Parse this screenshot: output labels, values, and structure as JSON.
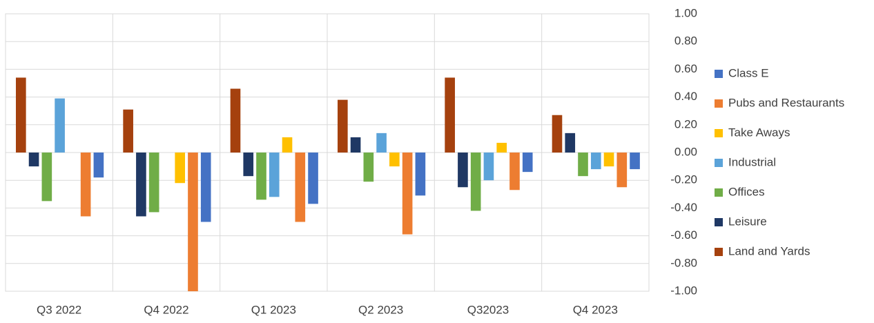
{
  "chart_data": {
    "type": "bar",
    "categories": [
      "Q3 2022",
      "Q4 2022",
      "Q1 2023",
      "Q2 2023",
      "Q32023",
      "Q4 2023"
    ],
    "series": [
      {
        "name": "Land and Yards",
        "color": "#a5410e",
        "values": [
          0.54,
          0.31,
          0.46,
          0.38,
          0.54,
          0.27
        ]
      },
      {
        "name": "Leisure",
        "color": "#1f3864",
        "values": [
          -0.1,
          -0.46,
          -0.17,
          0.11,
          -0.25,
          0.14
        ]
      },
      {
        "name": "Offices",
        "color": "#70ad47",
        "values": [
          -0.35,
          -0.43,
          -0.34,
          -0.21,
          -0.42,
          -0.17
        ]
      },
      {
        "name": "Industrial",
        "color": "#5ba3d9",
        "values": [
          0.39,
          0,
          -0.32,
          0.14,
          -0.2,
          -0.12
        ]
      },
      {
        "name": "Take Aways",
        "color": "#ffc000",
        "values": [
          0,
          -0.22,
          0.11,
          -0.1,
          0.07,
          -0.1
        ]
      },
      {
        "name": "Pubs and Restaurants",
        "color": "#ed7d31",
        "values": [
          -0.46,
          -1.0,
          -0.5,
          -0.59,
          -0.27,
          -0.25
        ]
      },
      {
        "name": "Class E",
        "color": "#4472c4",
        "values": [
          -0.18,
          -0.5,
          -0.37,
          -0.31,
          -0.14,
          -0.12
        ]
      }
    ],
    "ylim": [
      -1,
      1
    ],
    "yticks": [
      {
        "value": 1,
        "label": "1.00"
      },
      {
        "value": 0.8,
        "label": "0.80"
      },
      {
        "value": 0.6,
        "label": "0.60"
      },
      {
        "value": 0.4,
        "label": "0.40"
      },
      {
        "value": 0.2,
        "label": "0.20"
      },
      {
        "value": 0,
        "label": "0.00"
      },
      {
        "value": -0.2,
        "label": "-0.20"
      },
      {
        "value": -0.4,
        "label": "-0.40"
      },
      {
        "value": -0.6,
        "label": "-0.60"
      },
      {
        "value": -0.8,
        "label": "-0.80"
      },
      {
        "value": -1,
        "label": "-1.00"
      }
    ],
    "grid": true,
    "legend": "right"
  }
}
